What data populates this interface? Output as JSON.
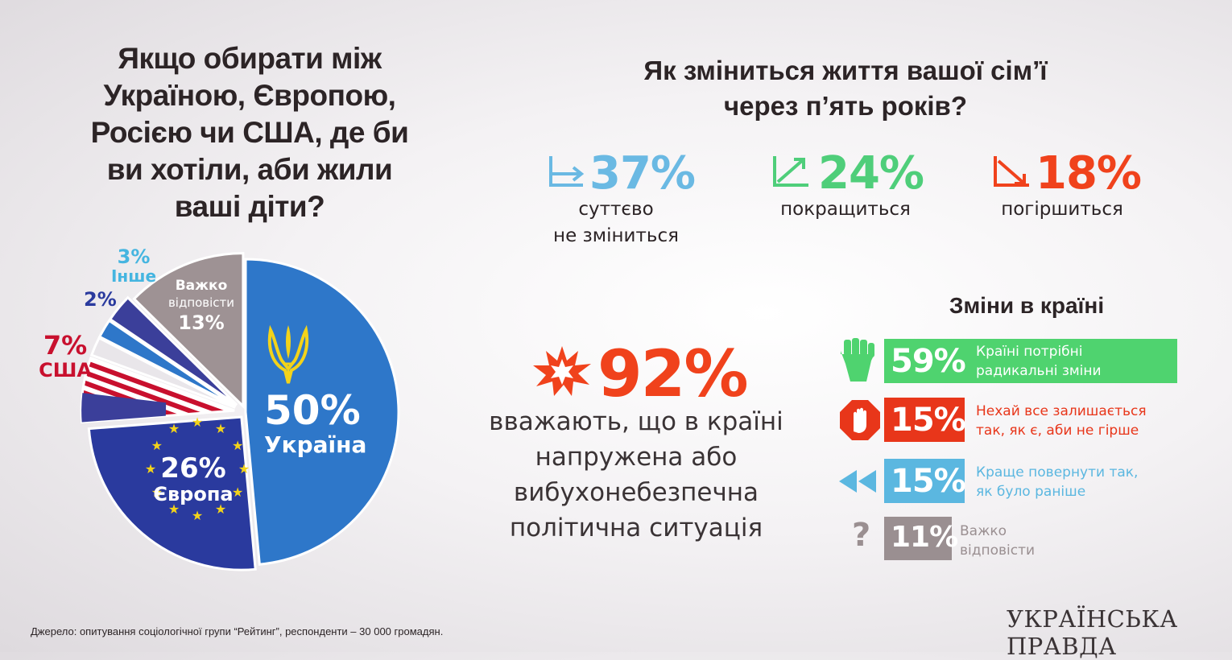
{
  "left_question": "Якщо обирати між Україною, Європою, Росією чи США, де би ви хотіли, аби жили ваші діти?",
  "right_question_line1": "Як зміниться життя вашої сім’ї",
  "right_question_line2": "через п’ять років?",
  "family_stats": [
    {
      "value": "37%",
      "label_line1": "суттєво",
      "label_line2": "не зміниться",
      "color": "#6ab9e3",
      "icon": "flat-trend-icon"
    },
    {
      "value": "24%",
      "label_line1": "покращиться",
      "label_line2": "",
      "color": "#4fce7a",
      "icon": "up-trend-icon"
    },
    {
      "value": "18%",
      "label_line1": "погіршиться",
      "label_line2": "",
      "color": "#f0421c",
      "icon": "down-trend-icon"
    }
  ],
  "pie_labels": {
    "ukraine_value": "50%",
    "ukraine_name": "Україна",
    "europe_value": "26%",
    "europe_name": "Європа",
    "usa_value": "7%",
    "usa_name": "США",
    "other2_value": "2%",
    "other3_value": "3%",
    "other3_name": "Інше",
    "hard_line1": "Важко",
    "hard_line2": "відповісти",
    "hard_value": "13%"
  },
  "tension": {
    "value": "92%",
    "text_line1": "вважають, що в країні",
    "text_line2": "напружена або",
    "text_line3": "вибухонебезпечна",
    "text_line4": "політична ситуація",
    "color": "#f0421c",
    "icon": "explosion-icon"
  },
  "changes_title": "Зміни в країні",
  "changes": [
    {
      "value": "59%",
      "text_line1": "Країні потрібні",
      "text_line2": "радикальні зміни",
      "color": "#4fd36f",
      "icon": "raised-fist-icon"
    },
    {
      "value": "15%",
      "text_line1": "Нехай все залишається",
      "text_line2": "так, як є, аби не гірше",
      "color": "#e8361a",
      "icon": "stop-hand-icon"
    },
    {
      "value": "15%",
      "text_line1": "Краще повернути так,",
      "text_line2": "як було раніше",
      "color": "#5bb7e0",
      "icon": "rewind-icon"
    },
    {
      "value": "11%",
      "text_line1": "Важко",
      "text_line2": "відповісти",
      "color": "#9a8f91",
      "icon": "question-icon"
    }
  ],
  "source": "Джерело: опитування соціологічної групи “Рейтинг”, респонденти – 30 000 громадян.",
  "logo": "УКРАЇНСЬКА ПРАВДА",
  "chart_data": [
    {
      "type": "pie",
      "title": "Якщо обирати між Україною, Європою, Росією чи США, де би ви хотіли, аби жили ваші діти?",
      "slices": [
        {
          "label": "Україна",
          "value": 50,
          "color": "#2e77c9"
        },
        {
          "label": "Європа",
          "value": 26,
          "color": "#2a3a9e"
        },
        {
          "label": "США",
          "value": 7,
          "color": "#c8102e"
        },
        {
          "label": "",
          "value": 2,
          "color": "#e9e6ea"
        },
        {
          "label": "",
          "value": 2,
          "color": "#2e77c9"
        },
        {
          "label": "Інше",
          "value": 3,
          "color": "#3b3f9a"
        },
        {
          "label": "Важко відповісти",
          "value": 13,
          "color": "#9e9294"
        }
      ]
    },
    {
      "type": "bar",
      "title": "Зміни в країні",
      "categories": [
        "Країні потрібні радикальні зміни",
        "Нехай все залишається так, як є, аби не гірше",
        "Краще повернути так, як було раніше",
        "Важко відповісти"
      ],
      "values": [
        59,
        15,
        15,
        11
      ]
    }
  ]
}
